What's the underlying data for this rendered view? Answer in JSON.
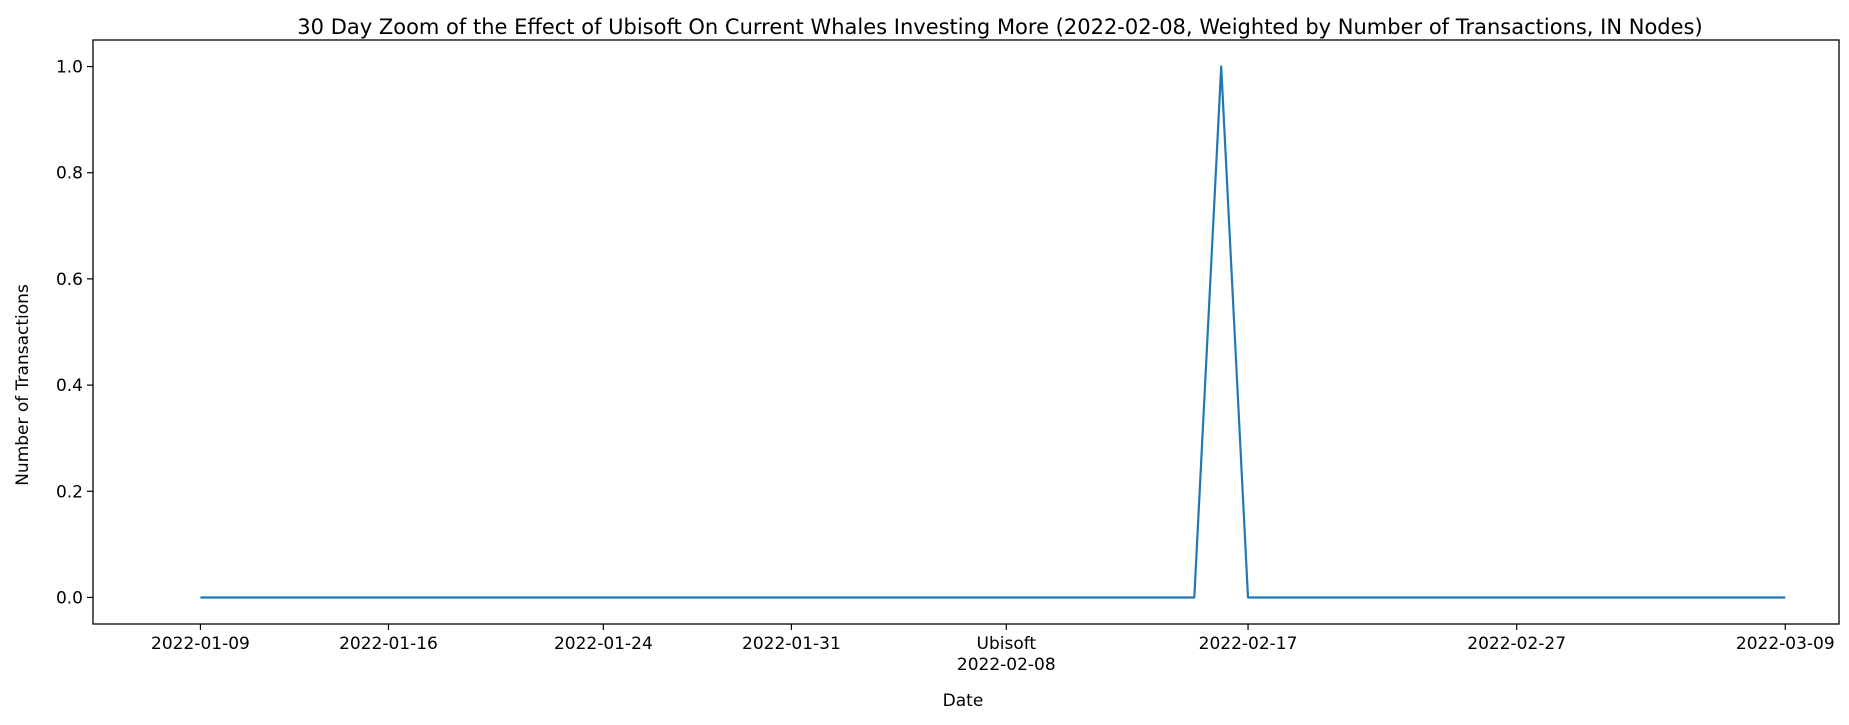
{
  "chart_data": {
    "type": "line",
    "title": "30 Day Zoom of the Effect of Ubisoft On Current Whales Investing More (2022-02-08, Weighted by Number of Transactions, IN Nodes)",
    "xlabel": "Date",
    "ylabel": "Number of Transactions",
    "xlim": [
      "2022-01-05",
      "2022-03-11"
    ],
    "ylim": [
      -0.05,
      1.05
    ],
    "grid": false,
    "x_ticks": [
      {
        "date": "2022-01-09",
        "label": "2022-01-09"
      },
      {
        "date": "2022-01-16",
        "label": "2022-01-16"
      },
      {
        "date": "2022-01-24",
        "label": "2022-01-24"
      },
      {
        "date": "2022-01-31",
        "label": "2022-01-31"
      },
      {
        "date": "2022-02-08",
        "label": "Ubisoft",
        "sublabel": "2022-02-08"
      },
      {
        "date": "2022-02-17",
        "label": "2022-02-17"
      },
      {
        "date": "2022-02-27",
        "label": "2022-02-27"
      },
      {
        "date": "2022-03-09",
        "label": "2022-03-09"
      }
    ],
    "y_ticks": [
      {
        "value": 0.0,
        "label": "0.0"
      },
      {
        "value": 0.2,
        "label": "0.2"
      },
      {
        "value": 0.4,
        "label": "0.4"
      },
      {
        "value": 0.6,
        "label": "0.6"
      },
      {
        "value": 0.8,
        "label": "0.8"
      },
      {
        "value": 1.0,
        "label": "1.0"
      }
    ],
    "series": [
      {
        "color": "#1f77b4",
        "x": [
          "2022-01-09",
          "2022-02-15",
          "2022-02-16",
          "2022-02-17",
          "2022-03-09"
        ],
        "y": [
          0,
          0,
          1,
          0,
          0
        ]
      }
    ]
  }
}
